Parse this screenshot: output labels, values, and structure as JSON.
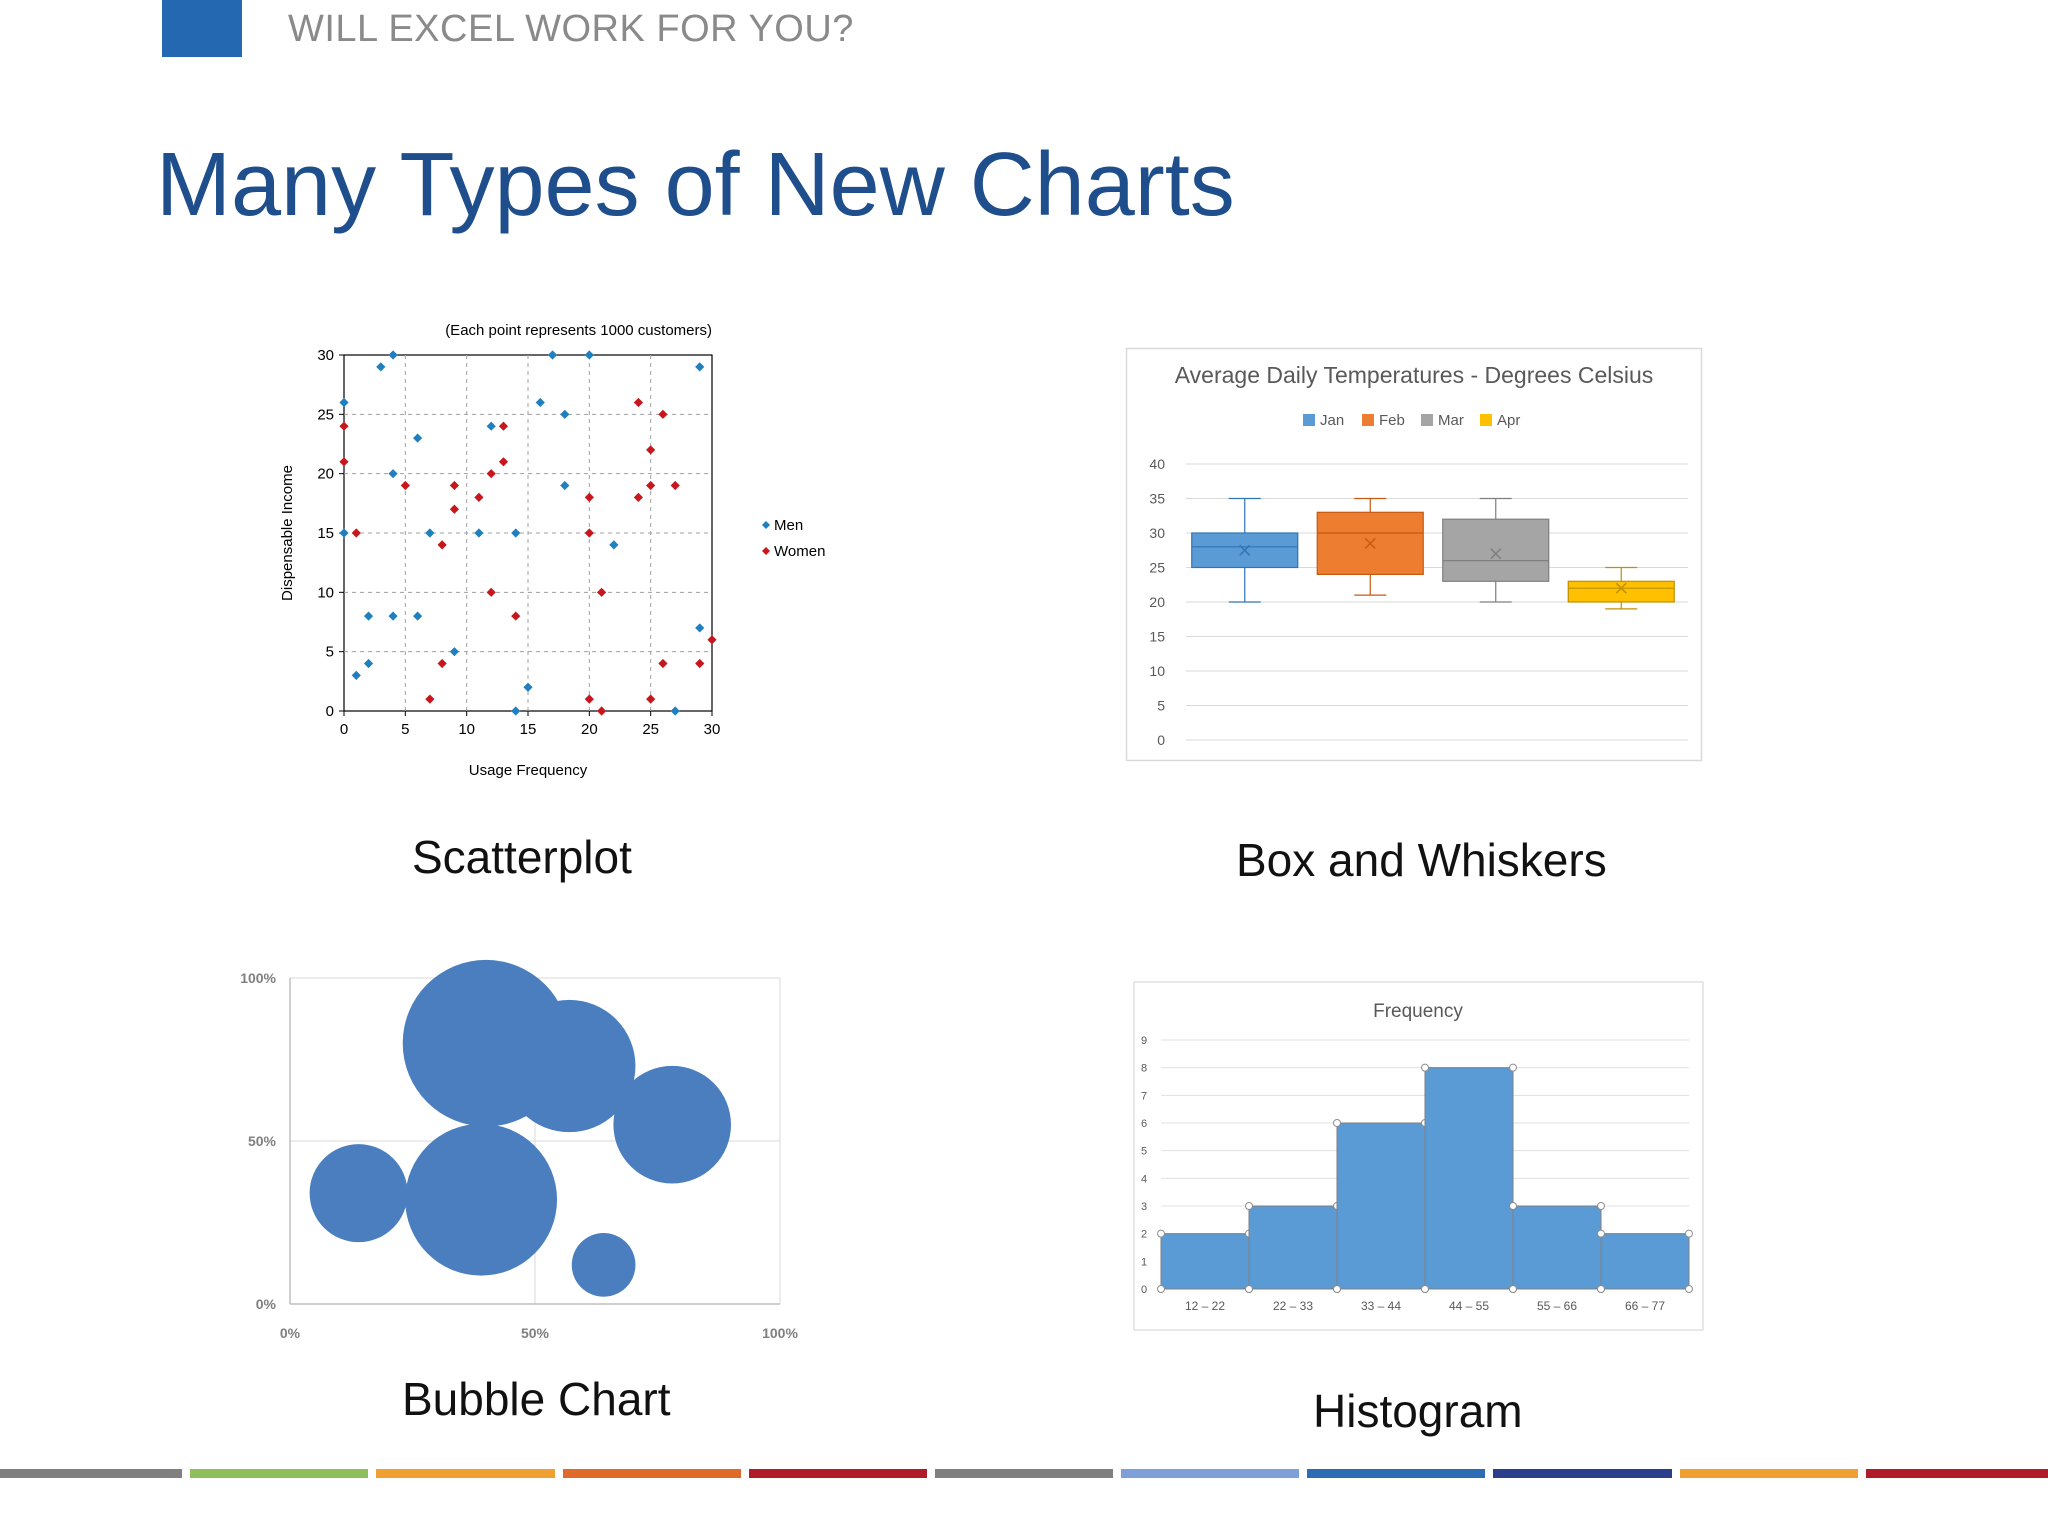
{
  "header": {
    "label": "WILL EXCEL WORK FOR YOU?"
  },
  "slide": {
    "title": "Many Types of New Charts"
  },
  "captions": {
    "scatter": "Scatterplot",
    "box": "Box and Whiskers",
    "bubble": "Bubble Chart",
    "histogram": "Histogram"
  },
  "colors": {
    "accent": "#2468b2",
    "title": "#1f4e8c",
    "men": "#1f7fbf",
    "women": "#c8161d",
    "bubble": "#4a7ebf",
    "hist": "#5b9bd5",
    "footer": [
      "#7f7f7f",
      "#8dc05a",
      "#f0a030",
      "#e06a2a",
      "#b01c2a",
      "#7f7f7f",
      "#7f9fd8",
      "#2a6db5",
      "#2b3e8c",
      "#f0a030",
      "#b01c2a"
    ]
  },
  "chart_data": [
    {
      "type": "scatter",
      "title": "(Each point represents 1000 customers)",
      "xlabel": "Usage Frequency",
      "ylabel": "Dispensable Income",
      "xlim": [
        0,
        30
      ],
      "ylim": [
        0,
        30
      ],
      "xticks": [
        0,
        5,
        10,
        15,
        20,
        25,
        30
      ],
      "yticks": [
        0,
        5,
        10,
        15,
        20,
        25,
        30
      ],
      "grid": true,
      "legend": "right",
      "series": [
        {
          "name": "Men",
          "color": "#1f7fbf",
          "points": [
            [
              0,
              26
            ],
            [
              0,
              15
            ],
            [
              1,
              3
            ],
            [
              2,
              4
            ],
            [
              2,
              8
            ],
            [
              3,
              29
            ],
            [
              4,
              30
            ],
            [
              4,
              20
            ],
            [
              4,
              8
            ],
            [
              6,
              23
            ],
            [
              6,
              8
            ],
            [
              7,
              15
            ],
            [
              9,
              5
            ],
            [
              11,
              15
            ],
            [
              12,
              24
            ],
            [
              14,
              15
            ],
            [
              14,
              0
            ],
            [
              15,
              2
            ],
            [
              16,
              26
            ],
            [
              17,
              30
            ],
            [
              18,
              25
            ],
            [
              18,
              19
            ],
            [
              20,
              30
            ],
            [
              22,
              14
            ],
            [
              27,
              0
            ],
            [
              29,
              29
            ],
            [
              29,
              7
            ]
          ]
        },
        {
          "name": "Women",
          "color": "#c8161d",
          "points": [
            [
              0,
              24
            ],
            [
              0,
              21
            ],
            [
              1,
              15
            ],
            [
              5,
              19
            ],
            [
              7,
              1
            ],
            [
              8,
              4
            ],
            [
              8,
              14
            ],
            [
              9,
              17
            ],
            [
              9,
              19
            ],
            [
              11,
              18
            ],
            [
              12,
              20
            ],
            [
              12,
              10
            ],
            [
              13,
              24
            ],
            [
              13,
              21
            ],
            [
              14,
              8
            ],
            [
              20,
              18
            ],
            [
              20,
              15
            ],
            [
              20,
              1
            ],
            [
              21,
              0
            ],
            [
              21,
              10
            ],
            [
              24,
              26
            ],
            [
              24,
              18
            ],
            [
              25,
              22
            ],
            [
              25,
              19
            ],
            [
              25,
              1
            ],
            [
              26,
              25
            ],
            [
              26,
              4
            ],
            [
              27,
              19
            ],
            [
              29,
              4
            ],
            [
              30,
              6
            ]
          ]
        }
      ]
    },
    {
      "type": "box",
      "title": "Average Daily Temperatures - Degrees Celsius",
      "ylim": [
        0,
        40
      ],
      "yticks": [
        0,
        5,
        10,
        15,
        20,
        25,
        30,
        35,
        40
      ],
      "legend": "top",
      "series": [
        {
          "name": "Jan",
          "color": "#5b9bd5",
          "min": 20,
          "q1": 25,
          "median": 28,
          "q3": 30,
          "max": 35,
          "mean": 27.5
        },
        {
          "name": "Feb",
          "color": "#ed7d31",
          "min": 21,
          "q1": 24,
          "median": 30,
          "q3": 33,
          "max": 35,
          "mean": 28.5
        },
        {
          "name": "Mar",
          "color": "#a5a5a5",
          "min": 20,
          "q1": 23,
          "median": 26,
          "q3": 32,
          "max": 35,
          "mean": 27
        },
        {
          "name": "Apr",
          "color": "#ffc000",
          "min": 19,
          "q1": 20,
          "median": 22,
          "q3": 23,
          "max": 25,
          "mean": 22
        }
      ]
    },
    {
      "type": "bubble",
      "xlim": [
        0,
        100
      ],
      "ylim": [
        0,
        100
      ],
      "xticks": [
        "0%",
        "50%",
        "100%"
      ],
      "yticks": [
        "0%",
        "50%",
        "100%"
      ],
      "points": [
        {
          "x": 14,
          "y": 34,
          "size": 20
        },
        {
          "x": 39,
          "y": 32,
          "size": 31
        },
        {
          "x": 40,
          "y": 80,
          "size": 34
        },
        {
          "x": 57,
          "y": 73,
          "size": 27
        },
        {
          "x": 64,
          "y": 12,
          "size": 13
        },
        {
          "x": 78,
          "y": 55,
          "size": 24
        }
      ]
    },
    {
      "type": "histogram",
      "title": "Frequency",
      "ylim": [
        0,
        9
      ],
      "yticks": [
        0,
        1,
        2,
        3,
        4,
        5,
        6,
        7,
        8,
        9
      ],
      "categories": [
        "12 – 22",
        "22 – 33",
        "33 – 44",
        "44 – 55",
        "55 – 66",
        "66 – 77"
      ],
      "values": [
        2,
        3,
        6,
        8,
        3,
        2
      ]
    }
  ]
}
